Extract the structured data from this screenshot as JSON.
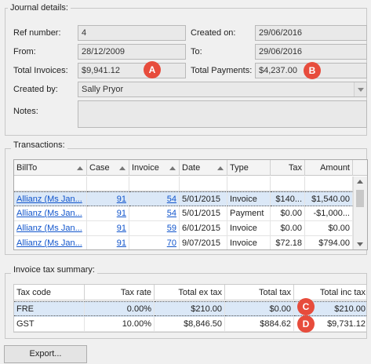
{
  "journal": {
    "legend": "Journal details:",
    "ref_label": "Ref number:",
    "ref_value": "4",
    "created_on_label": "Created on:",
    "created_on_value": "29/06/2016",
    "from_label": "From:",
    "from_value": "28/12/2009",
    "to_label": "To:",
    "to_value": "29/06/2016",
    "total_invoices_label": "Total Invoices:",
    "total_invoices_value": "$9,941.12",
    "total_payments_label": "Total Payments:",
    "total_payments_value": "$4,237.00",
    "created_by_label": "Created by:",
    "created_by_value": "Sally Pryor",
    "notes_label": "Notes:",
    "notes_value": ""
  },
  "markers": {
    "a": "A",
    "b": "B",
    "c": "C",
    "d": "D"
  },
  "transactions": {
    "legend": "Transactions:",
    "columns": [
      "BillTo",
      "Case",
      "Invoice",
      "Date",
      "Type",
      "Tax",
      "Amount"
    ],
    "rows": [
      [
        "Allianz (Ms Jan...",
        "91",
        "54",
        "5/01/2015",
        "Invoice",
        "$140...",
        "$1,540.00"
      ],
      [
        "Allianz (Ms Jan...",
        "91",
        "54",
        "5/01/2015",
        "Payment",
        "$0.00",
        "-$1,000..."
      ],
      [
        "Allianz (Ms Jan...",
        "91",
        "59",
        "6/01/2015",
        "Invoice",
        "$0.00",
        "$0.00"
      ],
      [
        "Allianz (Ms Jan...",
        "91",
        "70",
        "9/07/2015",
        "Invoice",
        "$72.18",
        "$794.00"
      ]
    ]
  },
  "tax_summary": {
    "legend": "Invoice tax summary:",
    "columns": [
      "Tax code",
      "Tax rate",
      "Total ex tax",
      "Total tax",
      "Total inc tax"
    ],
    "rows": [
      [
        "FRE",
        "0.00%",
        "$210.00",
        "$0.00",
        "$210.00"
      ],
      [
        "GST",
        "10.00%",
        "$8,846.50",
        "$884.62",
        "$9,731.12"
      ]
    ]
  },
  "export_label": "Export...",
  "colors": {
    "marker": "#e74c3c",
    "link": "#1155cc",
    "selection": "#dbe8f7"
  }
}
